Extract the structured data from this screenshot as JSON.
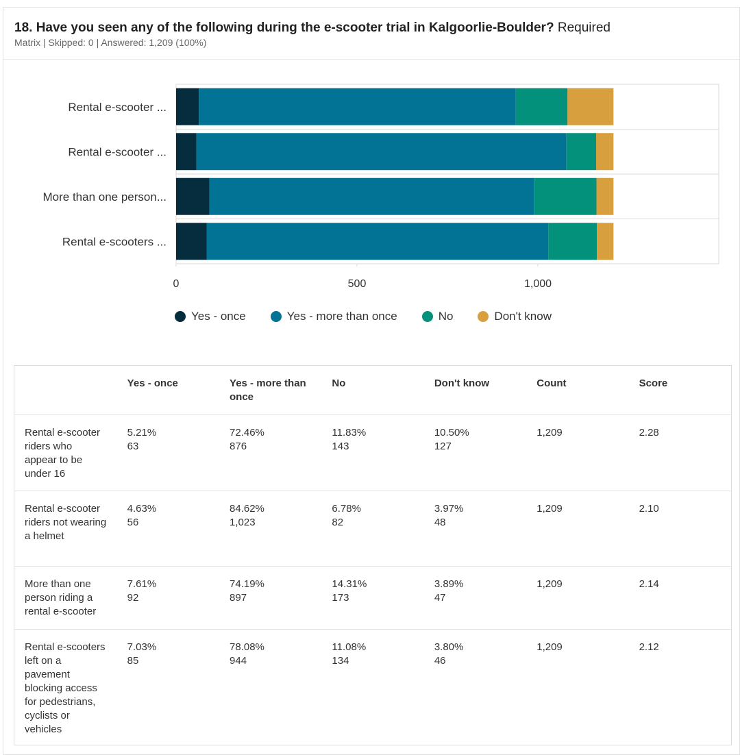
{
  "question": {
    "title": "18. Have you seen any of the following during the e-scooter trial in Kalgoorlie-Boulder?",
    "required_label": "Required",
    "meta": "Matrix | Skipped: 0 | Answered: 1,209 (100%)"
  },
  "colors": {
    "yes_once": "#052d3d",
    "yes_more": "#027394",
    "no": "#04917c",
    "dont_know": "#d79f3d",
    "grid": "#d9d9d9"
  },
  "chart_data": {
    "type": "bar",
    "orientation": "horizontal",
    "stacked": true,
    "categories": [
      "Rental e-scooter ...",
      "Rental e-scooter ...",
      "More than one person...",
      "Rental e-scooters ..."
    ],
    "series": [
      {
        "name": "Yes - once",
        "values": [
          63,
          56,
          92,
          85
        ]
      },
      {
        "name": "Yes - more than once",
        "values": [
          876,
          1023,
          897,
          944
        ]
      },
      {
        "name": "No",
        "values": [
          143,
          82,
          173,
          134
        ]
      },
      {
        "name": "Don't know",
        "values": [
          127,
          48,
          47,
          46
        ]
      }
    ],
    "xlim": [
      0,
      1500
    ],
    "x_ticks": [
      0,
      500,
      1000
    ],
    "x_tick_labels": [
      "0",
      "500",
      "1,000"
    ],
    "legend_position": "bottom",
    "grid": true
  },
  "table": {
    "headers": [
      "",
      "Yes - once",
      "Yes - more than once",
      "No",
      "Don't know",
      "Count",
      "Score"
    ],
    "rows": [
      {
        "label": "Rental e-scooter riders who appear to be under 16",
        "cells": [
          {
            "pct": "5.21%",
            "count": "63"
          },
          {
            "pct": "72.46%",
            "count": "876"
          },
          {
            "pct": "11.83%",
            "count": "143"
          },
          {
            "pct": "10.50%",
            "count": "127"
          }
        ],
        "total": "1,209",
        "score": "2.28"
      },
      {
        "label": "Rental e-scooter riders not wearing a helmet",
        "cells": [
          {
            "pct": "4.63%",
            "count": "56"
          },
          {
            "pct": "84.62%",
            "count": "1,023"
          },
          {
            "pct": "6.78%",
            "count": "82"
          },
          {
            "pct": "3.97%",
            "count": "48"
          }
        ],
        "total": "1,209",
        "score": "2.10"
      },
      {
        "label": "More than one person riding a rental e-scooter",
        "cells": [
          {
            "pct": "7.61%",
            "count": "92"
          },
          {
            "pct": "74.19%",
            "count": "897"
          },
          {
            "pct": "14.31%",
            "count": "173"
          },
          {
            "pct": "3.89%",
            "count": "47"
          }
        ],
        "total": "1,209",
        "score": "2.14"
      },
      {
        "label": "Rental e-scooters left on a pavement blocking access for pedestrians, cyclists or vehicles",
        "cells": [
          {
            "pct": "7.03%",
            "count": "85"
          },
          {
            "pct": "78.08%",
            "count": "944"
          },
          {
            "pct": "11.08%",
            "count": "134"
          },
          {
            "pct": "3.80%",
            "count": "46"
          }
        ],
        "total": "1,209",
        "score": "2.12"
      }
    ]
  }
}
